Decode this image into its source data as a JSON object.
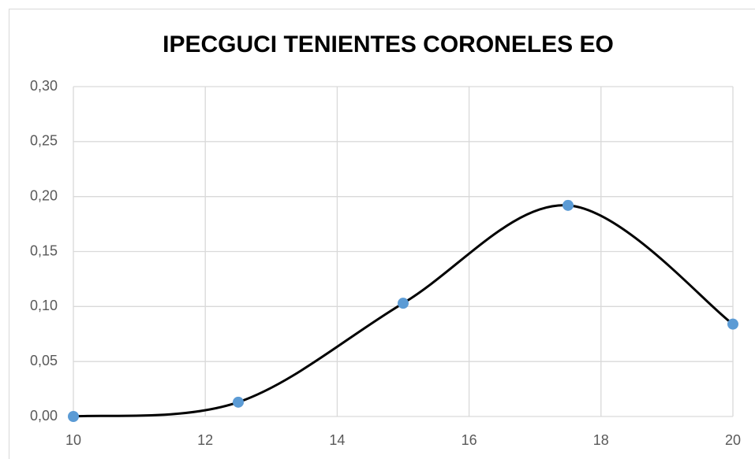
{
  "chart_data": {
    "type": "scatter",
    "title": "IPECGUCI TENIENTES CORONELES EO",
    "x": [
      10,
      12.5,
      15,
      17.5,
      20
    ],
    "values": [
      0,
      0.013,
      0.103,
      0.192,
      0.084
    ],
    "color": "#5b9bd5",
    "line_color": "#000000",
    "smooth": true,
    "grid": true,
    "xlim": [
      10,
      20
    ],
    "xticks": [
      10,
      12,
      14,
      16,
      18,
      20
    ],
    "ylim": [
      0,
      0.3
    ],
    "yticks": [
      {
        "value": 0,
        "label": "0,00"
      },
      {
        "value": 0.05,
        "label": "0,05"
      },
      {
        "value": 0.1,
        "label": "0,10"
      },
      {
        "value": 0.15,
        "label": "0,15"
      },
      {
        "value": 0.2,
        "label": "0,20"
      },
      {
        "value": 0.25,
        "label": "0,25"
      },
      {
        "value": 0.3,
        "label": "0,30"
      }
    ]
  }
}
